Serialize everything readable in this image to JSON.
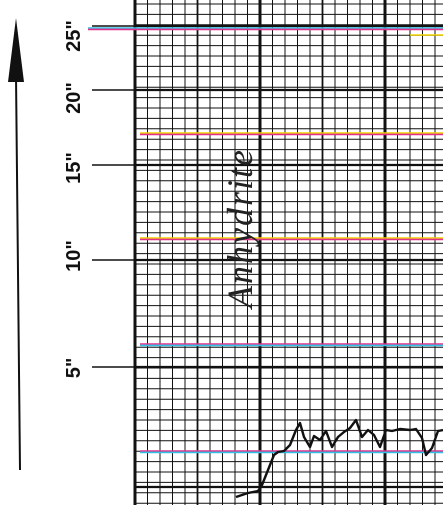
{
  "depth_scale": {
    "ticks": [
      {
        "label": "25\"",
        "value": 25
      },
      {
        "label": "20\"",
        "value": 20
      },
      {
        "label": "15\"",
        "value": 15
      },
      {
        "label": "10\"",
        "value": 10
      },
      {
        "label": "5\"",
        "value": 5
      }
    ],
    "arrow_icon": "up-arrow-icon"
  },
  "annotation": {
    "text": "Anhydrite"
  },
  "colors": {
    "ink": "#111111",
    "paper": "#ffffff",
    "line_cyan": "#33c0e6",
    "line_magenta": "#e0308a",
    "line_yellow": "#f0d400"
  },
  "trace": {
    "points": [
      [
        236,
        497
      ],
      [
        248,
        493
      ],
      [
        258,
        491
      ],
      [
        262,
        485
      ],
      [
        268,
        470
      ],
      [
        274,
        455
      ],
      [
        278,
        452
      ],
      [
        284,
        451
      ],
      [
        290,
        445
      ],
      [
        296,
        430
      ],
      [
        300,
        423
      ],
      [
        304,
        437
      ],
      [
        310,
        447
      ],
      [
        314,
        436
      ],
      [
        320,
        440
      ],
      [
        326,
        431
      ],
      [
        332,
        447
      ],
      [
        338,
        437
      ],
      [
        344,
        432
      ],
      [
        350,
        428
      ],
      [
        356,
        420
      ],
      [
        362,
        437
      ],
      [
        368,
        430
      ],
      [
        374,
        435
      ],
      [
        380,
        447
      ],
      [
        386,
        430
      ],
      [
        392,
        431
      ],
      [
        400,
        429
      ],
      [
        410,
        430
      ],
      [
        416,
        429
      ],
      [
        422,
        438
      ],
      [
        426,
        455
      ],
      [
        432,
        448
      ],
      [
        438,
        431
      ],
      [
        443,
        430
      ]
    ]
  }
}
